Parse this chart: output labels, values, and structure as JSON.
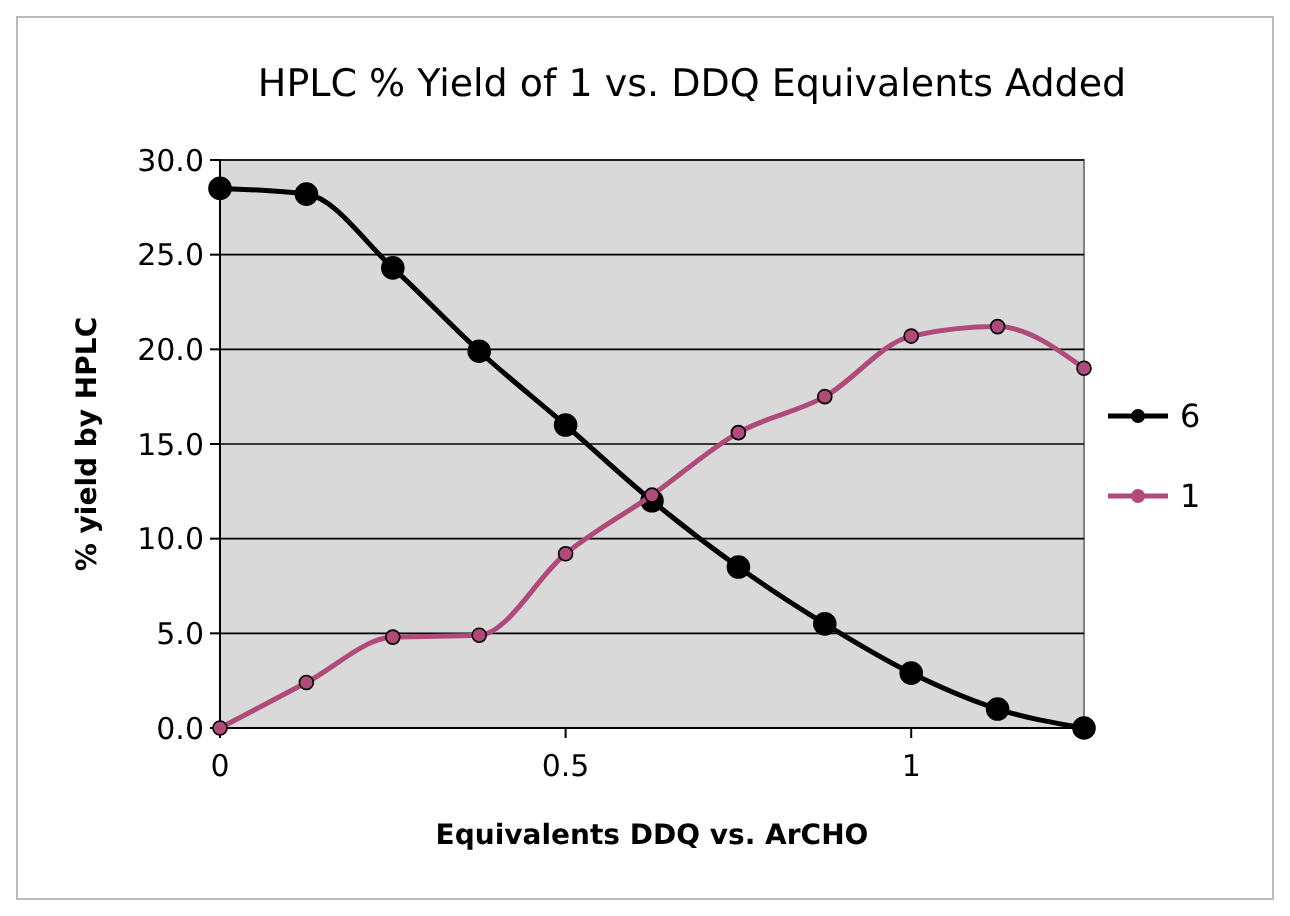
{
  "chart_data": {
    "type": "line",
    "title": "HPLC % Yield of 1 vs. DDQ Equivalents Added",
    "xlabel": "Equivalents DDQ vs. ArCHO",
    "ylabel": "% yield by HPLC",
    "x": [
      0,
      0.125,
      0.25,
      0.375,
      0.5,
      0.625,
      0.75,
      0.875,
      1,
      1.125,
      1.25
    ],
    "series": [
      {
        "name": "6",
        "color": "#000000",
        "values": [
          28.5,
          28.2,
          24.3,
          19.9,
          16,
          12,
          8.5,
          5.5,
          2.9,
          1,
          0
        ]
      },
      {
        "name": "1",
        "color": "#b04a7a",
        "values": [
          0,
          2.4,
          4.8,
          4.9,
          9.2,
          12.3,
          15.6,
          17.5,
          20.7,
          21.2,
          19
        ]
      }
    ],
    "xlim": [
      0,
      1.25
    ],
    "xticks": [
      0,
      0.5,
      1
    ],
    "ylim": [
      0,
      30
    ],
    "yticks": [
      {
        "value": 0,
        "label": "0.0"
      },
      {
        "value": 5,
        "label": "5.0"
      },
      {
        "value": 10,
        "label": "10.0"
      },
      {
        "value": 15,
        "label": "15.0"
      },
      {
        "value": 20,
        "label": "20.0"
      },
      {
        "value": 25,
        "label": "25.0"
      },
      {
        "value": 30,
        "label": "30.0"
      }
    ],
    "grid": "y",
    "legend": "right",
    "marker": "circle",
    "line_style": "solid"
  }
}
